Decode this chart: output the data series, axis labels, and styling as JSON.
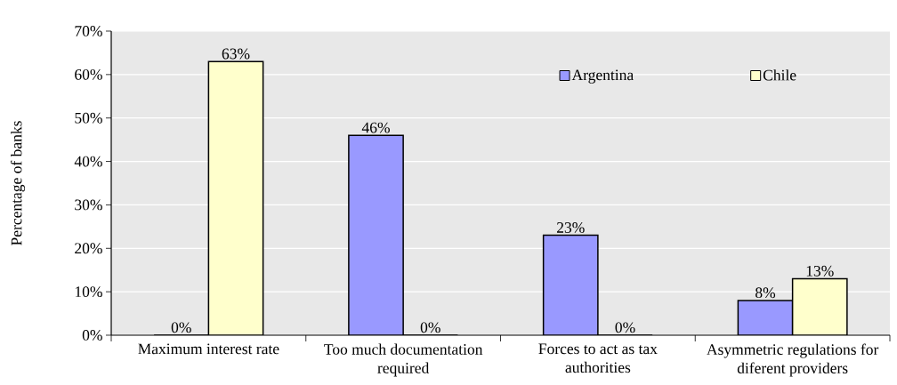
{
  "chart_data": {
    "type": "bar",
    "ylabel": "Percentage of banks",
    "categories": [
      "Maximum interest rate",
      "Too much documentation required",
      "Forces to act as tax authorities",
      "Asymmetric regulations for diferent providers"
    ],
    "series": [
      {
        "name": "Argentina",
        "color": "#9999ff",
        "values": [
          0,
          46,
          23,
          8
        ],
        "value_labels": [
          "0%",
          "46%",
          "23%",
          "8%"
        ]
      },
      {
        "name": "Chile",
        "color": "#ffffcc",
        "values": [
          63,
          0,
          0,
          13
        ],
        "value_labels": [
          "63%",
          "0%",
          "0%",
          "13%"
        ]
      }
    ],
    "ylim": [
      0,
      70
    ],
    "yticks": [
      {
        "value": 0,
        "label": "0%"
      },
      {
        "value": 10,
        "label": "10%"
      },
      {
        "value": 20,
        "label": "20%"
      },
      {
        "value": 30,
        "label": "30%"
      },
      {
        "value": 40,
        "label": "40%"
      },
      {
        "value": 50,
        "label": "50%"
      },
      {
        "value": 60,
        "label": "60%"
      },
      {
        "value": 70,
        "label": "70%"
      }
    ],
    "grid": "y",
    "legend": "top right"
  }
}
